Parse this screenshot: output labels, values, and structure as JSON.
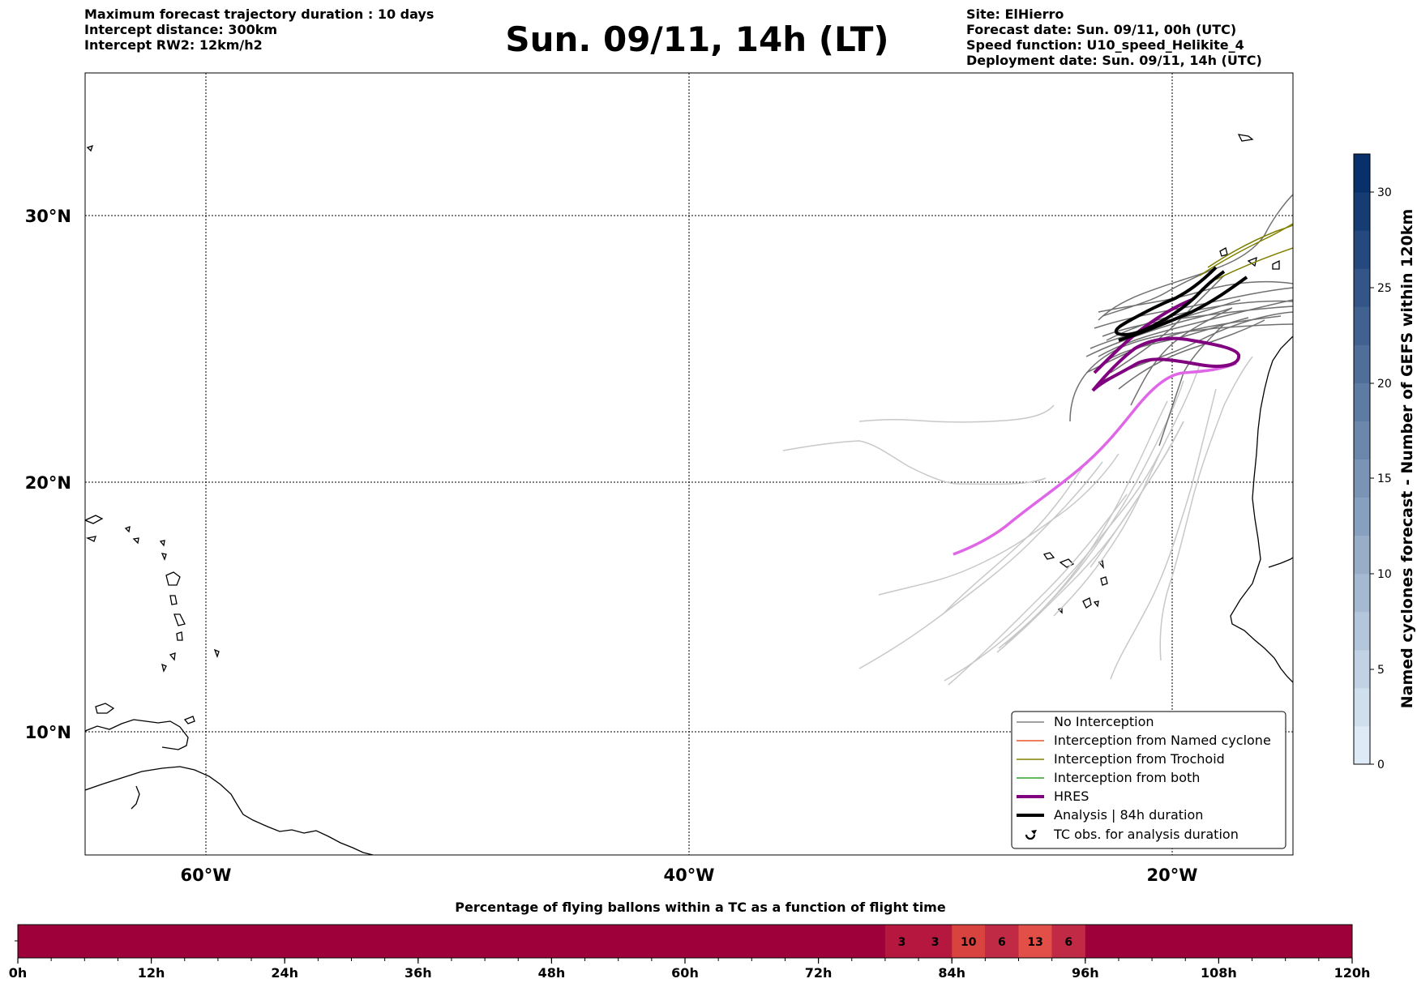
{
  "header": {
    "left": [
      "Maximum forecast trajectory duration : 10 days",
      "Intercept distance: 300km",
      "Intercept RW2: 12km/h2"
    ],
    "title": "Sun. 09/11, 14h (LT)",
    "right": [
      "Site: ElHierro",
      "Forecast date: Sun. 09/11, 00h (UTC)",
      "Speed function: U10_speed_Helikite_4",
      "Deployment date: Sun. 09/11, 14h (UTC)"
    ]
  },
  "map": {
    "lat_labels": [
      "30°N",
      "20°N",
      "10°N"
    ],
    "lon_labels": [
      "60°W",
      "40°W",
      "20°W"
    ],
    "lat_range": [
      5,
      35.3
    ],
    "lon_range": [
      -65,
      -15
    ],
    "gridlines": true
  },
  "legend": {
    "items": [
      {
        "label": "No Interception",
        "color": "#808080"
      },
      {
        "label": "Interception from Named cyclone",
        "color": "#e8542a"
      },
      {
        "label": "Interception from Trochoid",
        "color": "#808000"
      },
      {
        "label": "Interception from both",
        "color": "#2ca02c"
      },
      {
        "label": "HRES",
        "color": "#800080"
      },
      {
        "label": "Analysis | 84h duration",
        "color": "#000000"
      },
      {
        "label": "TC obs. for analysis duration",
        "color": "#000000",
        "icon": "cyclone-symbol"
      }
    ]
  },
  "colorbar": {
    "label": "Named cyclones forecast - Number of GEFS within 120km",
    "ticks": [
      "0",
      "5",
      "10",
      "15",
      "20",
      "25",
      "30"
    ],
    "range": [
      0,
      32
    ]
  },
  "timeline": {
    "title": "Percentage of flying ballons within a TC as a function of flight time",
    "ticks": [
      "0h",
      "12h",
      "24h",
      "36h",
      "48h",
      "60h",
      "72h",
      "84h",
      "96h",
      "108h",
      "120h"
    ],
    "range_hours": [
      0,
      120
    ],
    "base_color": "#9e003a",
    "cells": [
      {
        "start_h": 78,
        "end_h": 81,
        "value": "3",
        "color": "#b5173f"
      },
      {
        "start_h": 81,
        "end_h": 84,
        "value": "3",
        "color": "#b5173f"
      },
      {
        "start_h": 84,
        "end_h": 87,
        "value": "10",
        "color": "#d8433f"
      },
      {
        "start_h": 87,
        "end_h": 90,
        "value": "6",
        "color": "#c12a44"
      },
      {
        "start_h": 90,
        "end_h": 93,
        "value": "13",
        "color": "#e24f48"
      },
      {
        "start_h": 93,
        "end_h": 96,
        "value": "6",
        "color": "#c12a44"
      }
    ]
  }
}
